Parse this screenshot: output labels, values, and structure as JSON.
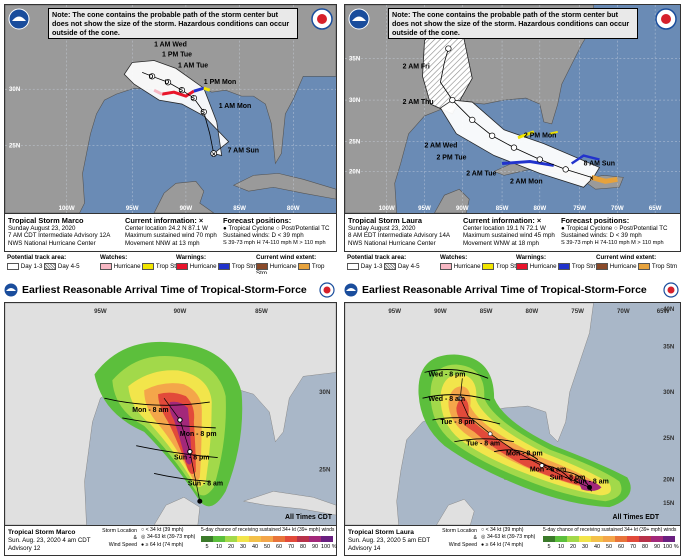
{
  "panels": {
    "marco_cone": {
      "note": "Note: The cone contains the probable path of the storm center but does not show the size of the storm. Hazardous conditions can occur outside of the cone.",
      "storm_title": "Tropical Storm Marco",
      "date_line": "Sunday August 23, 2020",
      "advisory_line": "7 AM CDT Intermediate Advisory 12A",
      "center_line": "NWS National Hurricane Center",
      "current_info_label": "Current information: ×",
      "center_location": "Center location 24.2 N 87.1 W",
      "max_wind": "Maximum sustained wind 70 mph",
      "movement": "Movement NNW at 13 mph",
      "forecast_label": "Forecast positions:",
      "fp_tropical": "Tropical Cyclone",
      "fp_post": "Post/Potential TC",
      "fp_sustained": "Sustained winds:",
      "fp_d": "D < 39 mph",
      "fp_sh": "S 39-73 mph  H 74-110 mph  M > 110 mph",
      "lon_labels": [
        "100W",
        "95W",
        "90W",
        "85W",
        "80W"
      ],
      "lat_labels": [
        "30N",
        "25N"
      ],
      "track_labels": [
        "1 AM Wed",
        "1 PM Tue",
        "1 AM Tue",
        "1 PM Mon",
        "1 AM Mon",
        "7 AM Sun"
      ]
    },
    "laura_cone": {
      "note": "Note: The cone contains the probable path of the storm center but does not show the size of the storm. Hazardous conditions can occur outside of the cone.",
      "storm_title": "Tropical Storm Laura",
      "date_line": "Sunday August 23, 2020",
      "advisory_line": "8 AM EDT Intermediate Advisory 14A",
      "center_line": "NWS National Hurricane Center",
      "current_info_label": "Current information: ×",
      "center_location": "Center location 19.1 N 72.1 W",
      "max_wind": "Maximum sustained wind 45 mph",
      "movement": "Movement WNW at 18 mph",
      "forecast_label": "Forecast positions:",
      "fp_tropical": "Tropical Cyclone",
      "fp_post": "Post/Potential TC",
      "fp_sustained": "Sustained winds:",
      "fp_d": "D < 39 mph",
      "fp_sh": "S 39-73 mph  H 74-110 mph  M > 110 mph",
      "lon_labels": [
        "100W",
        "95W",
        "90W",
        "85W",
        "80W",
        "75W",
        "70W",
        "65W"
      ],
      "lat_labels": [
        "35N",
        "30N",
        "25N",
        "20N"
      ],
      "track_labels": [
        "2 AM Fri",
        "2 AM Thu",
        "2 AM Wed",
        "2 PM Tue",
        "2 AM Tue",
        "2 PM Mon",
        "2 AM Mon",
        "8 AM Sun"
      ]
    },
    "legend": {
      "potential_track": "Potential track area:",
      "day13": "Day 1-3",
      "day45": "Day 4-5",
      "watches": "Watches:",
      "hurricane": "Hurricane",
      "trop_stm": "Trop Stm",
      "warnings": "Warnings:",
      "wind_extent": "Current wind extent:"
    },
    "marco_arrival": {
      "title": "Earliest Reasonable Arrival Time of Tropical-Storm-Force Winds",
      "all_times": "All Times CDT",
      "storm": "Tropical Storm Marco",
      "date": "Sun. Aug. 23, 2020  4 am CDT",
      "advisory": "Advisory 12",
      "lon_labels": [
        "95W",
        "90W",
        "85W"
      ],
      "lat_labels": [
        "30N",
        "25N"
      ],
      "arrival_labels": [
        "Mon - 8 am",
        "Mon - 8 pm",
        "Sun - 8 pm",
        "Sun - 8 am"
      ]
    },
    "laura_arrival": {
      "title": "Earliest Reasonable Arrival Time of Tropical-Storm-Force Winds",
      "all_times": "All Times EDT",
      "storm": "Tropical Storm Laura",
      "date": "Sun. Aug. 23, 2020  5 am EDT",
      "advisory": "Advisory 14",
      "lon_labels": [
        "95W",
        "90W",
        "85W",
        "80W",
        "75W",
        "70W",
        "65W"
      ],
      "lat_labels": [
        "40N",
        "35N",
        "30N",
        "25N",
        "20N",
        "15N"
      ],
      "arrival_labels": [
        "Wed - 8 pm",
        "Wed - 8 am",
        "Tue - 8 pm",
        "Tue - 8 am",
        "Mon - 8 pm",
        "Mon - 8 am",
        "Sun - 8 pm",
        "Sun - 8 am"
      ]
    },
    "arrival_legend": {
      "storm_location": "Storm Location",
      "and": "&",
      "wind_speed": "Wind Speed",
      "kt34": "< 34 kt (39 mph)",
      "kt3463": "34-63 kt (39-73 mph)",
      "kt64": "≥ 64 kt (74 mph)",
      "chance": "5-day chance of receiving sustained 34+ kt (39+ mph) winds",
      "scale": [
        "5",
        "10",
        "20",
        "30",
        "40",
        "50",
        "60",
        "70",
        "80",
        "90",
        "100 %"
      ]
    }
  },
  "colors": {
    "ocean": "#6a8bb5",
    "land": "#9a9a9a",
    "cone_fill": "#ffffff",
    "ts_warning": "#2233cc",
    "ts_watch": "#f2e600",
    "hurricane_warning": "#e8142b",
    "hurricane_watch": "#f7b7c3"
  }
}
